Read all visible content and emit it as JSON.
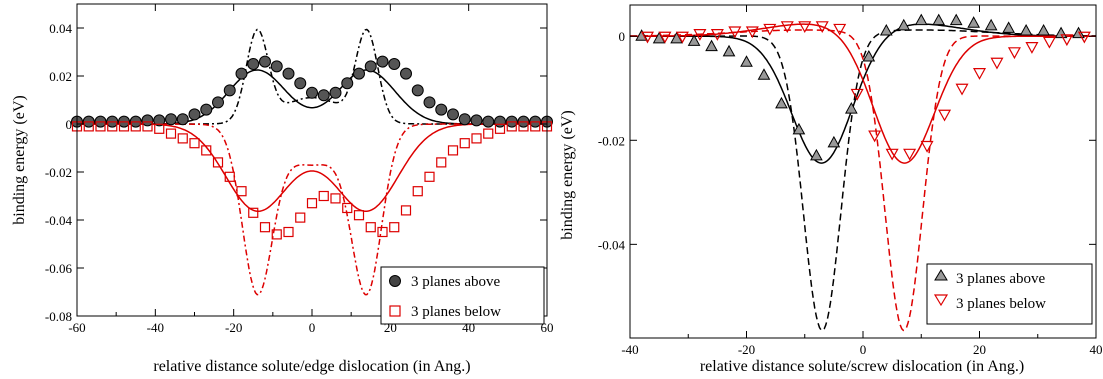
{
  "chart_data": [
    {
      "type": "line",
      "xlabel": "relative distance solute/edge dislocation (in Ang.)",
      "ylabel": "binding energy (eV)",
      "xlim": [
        -60,
        60
      ],
      "ylim": [
        -0.08,
        0.05
      ],
      "xticks": [
        -60,
        -40,
        -20,
        0,
        20,
        40,
        60
      ],
      "xtick_labels": [
        "-60",
        "-40",
        "-20",
        "0",
        "20",
        "40",
        "60"
      ],
      "yticks": [
        -0.08,
        -0.06,
        -0.04,
        -0.02,
        0,
        0.02,
        0.04
      ],
      "ytick_labels": [
        "-0.08",
        "-0.06",
        "-0.04",
        "-0.02",
        "0",
        "0.02",
        "0.04"
      ],
      "grid": false,
      "legend_position": "bottom-right",
      "series": [
        {
          "name": "3 planes above",
          "marker": "circle",
          "color": "#000000",
          "x": [
            -60,
            -57,
            -54,
            -51,
            -48,
            -45,
            -42,
            -39,
            -36,
            -33,
            -30,
            -27,
            -24,
            -21,
            -18,
            -15,
            -12,
            -9,
            -6,
            -3,
            0,
            3,
            6,
            9,
            12,
            15,
            18,
            21,
            24,
            27,
            30,
            33,
            36,
            39,
            42,
            45,
            48,
            51,
            54,
            57,
            60
          ],
          "y": [
            0.001,
            0.001,
            0.001,
            0.001,
            0.001,
            0.001,
            0.0015,
            0.0015,
            0.002,
            0.002,
            0.004,
            0.006,
            0.009,
            0.014,
            0.021,
            0.025,
            0.026,
            0.024,
            0.021,
            0.017,
            0.013,
            0.012,
            0.013,
            0.017,
            0.021,
            0.024,
            0.026,
            0.025,
            0.021,
            0.014,
            0.009,
            0.006,
            0.004,
            0.002,
            0.0015,
            0.001,
            0.001,
            0.001,
            0.001,
            0.001,
            0.001
          ]
        },
        {
          "name": "3 planes below",
          "marker": "square",
          "color": "#dd0000",
          "x": [
            -60,
            -57,
            -54,
            -51,
            -48,
            -45,
            -42,
            -39,
            -36,
            -33,
            -30,
            -27,
            -24,
            -21,
            -18,
            -15,
            -12,
            -9,
            -6,
            -3,
            0,
            3,
            6,
            9,
            12,
            15,
            18,
            21,
            24,
            27,
            30,
            33,
            36,
            39,
            42,
            45,
            48,
            51,
            54,
            57,
            60
          ],
          "y": [
            -0.001,
            -0.001,
            -0.001,
            -0.001,
            -0.001,
            -0.001,
            -0.001,
            -0.002,
            -0.004,
            -0.006,
            -0.008,
            -0.011,
            -0.016,
            -0.022,
            -0.028,
            -0.037,
            -0.043,
            -0.046,
            -0.045,
            -0.039,
            -0.033,
            -0.03,
            -0.031,
            -0.035,
            -0.038,
            -0.043,
            -0.045,
            -0.043,
            -0.036,
            -0.028,
            -0.022,
            -0.016,
            -0.011,
            -0.008,
            -0.006,
            -0.004,
            -0.002,
            -0.001,
            -0.001,
            -0.001,
            -0.001
          ]
        }
      ]
    },
    {
      "type": "line",
      "xlabel": "relative distance solute/screw dislocation (in Ang.)",
      "ylabel": "binding energy (eV)",
      "xlim": [
        -40,
        40
      ],
      "ylim": [
        -0.058,
        0.006
      ],
      "xticks": [
        -40,
        -20,
        0,
        20,
        40
      ],
      "xtick_labels": [
        "-40",
        "-20",
        "0",
        "20",
        "40"
      ],
      "yticks": [
        -0.04,
        -0.02,
        0
      ],
      "ytick_labels": [
        "-0.04",
        "-0.02",
        "0"
      ],
      "grid": false,
      "legend_position": "bottom-right",
      "series": [
        {
          "name": "3 planes above",
          "marker": "triangle-up",
          "color": "#000000",
          "x": [
            -38,
            -35,
            -32,
            -29,
            -26,
            -23,
            -20,
            -17,
            -14,
            -11,
            -8,
            -5,
            -2,
            1,
            4,
            7,
            10,
            13,
            16,
            19,
            22,
            25,
            28,
            31,
            34,
            37
          ],
          "y": [
            0,
            -0.0005,
            -0.0005,
            -0.001,
            -0.002,
            -0.003,
            -0.005,
            -0.0075,
            -0.013,
            -0.018,
            -0.023,
            -0.0205,
            -0.014,
            -0.004,
            0.001,
            0.002,
            0.003,
            0.003,
            0.003,
            0.0025,
            0.002,
            0.0015,
            0.001,
            0.001,
            0.0005,
            0.0005
          ]
        },
        {
          "name": "3 planes below",
          "marker": "triangle-down",
          "color": "#dd0000",
          "x": [
            -37,
            -34,
            -31,
            -28,
            -25,
            -22,
            -19,
            -16,
            -13,
            -10,
            -7,
            -4,
            -1,
            2,
            5,
            8,
            11,
            14,
            17,
            20,
            23,
            26,
            29,
            32,
            35,
            38
          ],
          "y": [
            0,
            0,
            0,
            0.0005,
            0.0005,
            0.001,
            0.001,
            0.0015,
            0.002,
            0.002,
            0.002,
            0.0015,
            -0.011,
            -0.019,
            -0.0225,
            -0.0225,
            -0.021,
            -0.015,
            -0.01,
            -0.007,
            -0.005,
            -0.003,
            -0.002,
            -0.001,
            -0.0005,
            0
          ]
        }
      ]
    }
  ]
}
